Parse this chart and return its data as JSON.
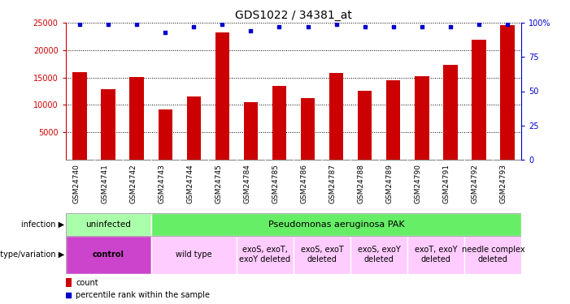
{
  "title": "GDS1022 / 34381_at",
  "samples": [
    "GSM24740",
    "GSM24741",
    "GSM24742",
    "GSM24743",
    "GSM24744",
    "GSM24745",
    "GSM24784",
    "GSM24785",
    "GSM24786",
    "GSM24787",
    "GSM24788",
    "GSM24789",
    "GSM24790",
    "GSM24791",
    "GSM24792",
    "GSM24793"
  ],
  "counts": [
    16000,
    12900,
    15100,
    9200,
    11500,
    23200,
    10500,
    13500,
    11300,
    15900,
    12500,
    14500,
    15300,
    17300,
    21900,
    24500
  ],
  "percentile_ranks": [
    99,
    99,
    99,
    93,
    97,
    99,
    94,
    97,
    97,
    99,
    97,
    97,
    97,
    97,
    99,
    99
  ],
  "bar_color": "#cc0000",
  "dot_color": "#0000cc",
  "ylim_left": [
    0,
    25000
  ],
  "ylim_right": [
    0,
    100
  ],
  "yticks_left": [
    5000,
    10000,
    15000,
    20000,
    25000
  ],
  "yticks_right": [
    0,
    25,
    50,
    75,
    100
  ],
  "infection_uninfected_color": "#aaffaa",
  "infection_pak_color": "#66ee66",
  "genotype_control_color": "#cc44cc",
  "genotype_other_color": "#ffccff",
  "infection_label": "infection",
  "genotype_label": "genotype/variation",
  "legend_count": "count",
  "legend_percentile": "percentile rank within the sample",
  "left_axis_color": "#cc0000",
  "right_axis_color": "#0000cc",
  "xtick_bg_color": "#cccccc",
  "infection_uninfected_label": "uninfected",
  "infection_pak_label": "Pseudomonas aeruginosa PAK",
  "genotype_groups": [
    {
      "start": 0,
      "end": 3,
      "label": "control",
      "color": "#cc44cc",
      "bold": true
    },
    {
      "start": 3,
      "end": 6,
      "label": "wild type",
      "color": "#ffccff",
      "bold": false
    },
    {
      "start": 6,
      "end": 8,
      "label": "exoS, exoT,\nexoY deleted",
      "color": "#ffccff",
      "bold": false
    },
    {
      "start": 8,
      "end": 10,
      "label": "exoS, exoT\ndeleted",
      "color": "#ffccff",
      "bold": false
    },
    {
      "start": 10,
      "end": 12,
      "label": "exoS, exoY\ndeleted",
      "color": "#ffccff",
      "bold": false
    },
    {
      "start": 12,
      "end": 14,
      "label": "exoT, exoY\ndeleted",
      "color": "#ffccff",
      "bold": false
    },
    {
      "start": 14,
      "end": 16,
      "label": "needle complex\ndeleted",
      "color": "#ffccff",
      "bold": false
    }
  ]
}
